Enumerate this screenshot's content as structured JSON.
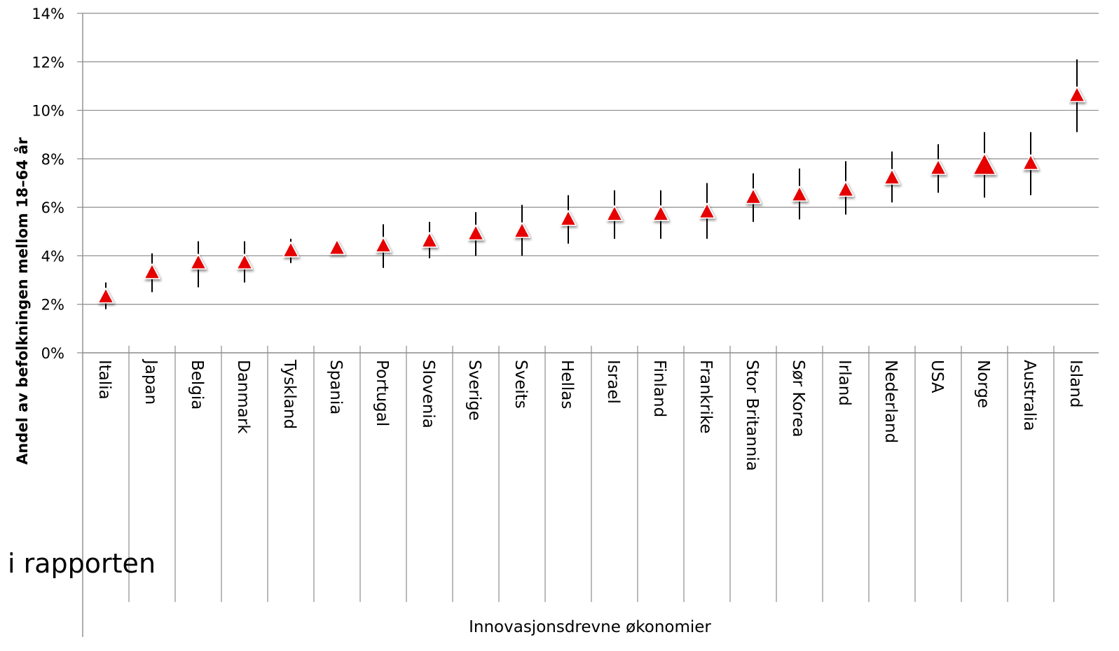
{
  "chart_data": {
    "type": "scatter",
    "xlabel": "Innovasjonsdrevne økonomier",
    "ylabel": "Andel av befolkningen mellom 18–64 år",
    "ylim": [
      0,
      14
    ],
    "yticks": [
      {
        "value": 0,
        "label": "0%"
      },
      {
        "value": 2,
        "label": "2%"
      },
      {
        "value": 4,
        "label": "4%"
      },
      {
        "value": 6,
        "label": "6%"
      },
      {
        "value": 8,
        "label": "8%"
      },
      {
        "value": 10,
        "label": "10%"
      },
      {
        "value": 12,
        "label": "12%"
      },
      {
        "value": 14,
        "label": "14%"
      }
    ],
    "grid": true,
    "marker_color": "#e60000",
    "error_bar_color": "#000000",
    "grid_color": "#8c8c8c",
    "categories": [
      "Italia",
      "Japan",
      "Belgia",
      "Danmark",
      "Tyskland",
      "Spania",
      "Portugal",
      "Slovenia",
      "Sverige",
      "Sveits",
      "Hellas",
      "Israel",
      "Finland",
      "Frankrike",
      "Stor Britannia",
      "Sør Korea",
      "Irland",
      "Nederland",
      "USA",
      "Norge",
      "Australia",
      "Island"
    ],
    "values": [
      2.3,
      3.3,
      3.7,
      3.7,
      4.2,
      4.3,
      4.4,
      4.6,
      4.9,
      5.0,
      5.5,
      5.7,
      5.7,
      5.8,
      6.4,
      6.5,
      6.7,
      7.2,
      7.6,
      7.7,
      7.8,
      10.6
    ],
    "error_low": [
      1.8,
      2.5,
      2.7,
      2.9,
      3.7,
      4.1,
      3.5,
      3.9,
      4.0,
      4.0,
      4.5,
      4.7,
      4.7,
      4.7,
      5.4,
      5.5,
      5.7,
      6.2,
      6.6,
      6.4,
      6.5,
      9.1
    ],
    "error_high": [
      2.9,
      4.1,
      4.6,
      4.6,
      4.7,
      4.5,
      5.3,
      5.4,
      5.8,
      6.1,
      6.5,
      6.7,
      6.7,
      7.0,
      7.4,
      7.6,
      7.9,
      8.3,
      8.6,
      9.1,
      9.1,
      12.1
    ],
    "highlight_category": "Norge"
  },
  "overlay_text": "i rapporten"
}
